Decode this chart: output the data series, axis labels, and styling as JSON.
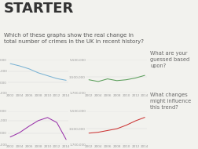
{
  "title": "STARTER",
  "subtitle": "Which of these graphs show the real change in\ntotal number of crimes in the UK in recent history?",
  "question1": "What are your\nguessed based\nupon?",
  "question2": "What changes\nmight influence\nthis trend?",
  "years": [
    2002,
    2004,
    2006,
    2008,
    2010,
    2012,
    2014
  ],
  "graph1": {
    "color": "#7ab3d4",
    "values": [
      6800000,
      6400000,
      5900000,
      5200000,
      4700000,
      4200000,
      3900000
    ],
    "ylim": [
      1700000,
      7500000
    ],
    "ytick_labels": [
      "1,700,000",
      "3,500,000",
      "5,500,000",
      "7,500,000"
    ],
    "ytick_vals": [
      1700000,
      3500000,
      5500000,
      7500000
    ]
  },
  "graph2": {
    "color": "#5a9e5a",
    "values": [
      3200000,
      3000000,
      3300000,
      3100000,
      3200000,
      3400000,
      3700000
    ],
    "ylim": [
      1700000,
      5500000
    ],
    "ytick_labels": [
      "1,700,000",
      "3,500,000",
      "5,500,000"
    ],
    "ytick_vals": [
      1700000,
      3500000,
      5500000
    ]
  },
  "graph3": {
    "color": "#9932aa",
    "values": [
      2900000,
      3600000,
      4600000,
      5500000,
      6000000,
      5200000,
      2500000
    ],
    "ylim": [
      1700000,
      7000000
    ],
    "ytick_labels": [
      "1,700,000",
      "3,500,000",
      "5,500,000",
      "7,000,000"
    ],
    "ytick_vals": [
      1700000,
      3500000,
      5500000,
      7000000
    ]
  },
  "graph4": {
    "color": "#cc3333",
    "values": [
      3000000,
      3100000,
      3300000,
      3500000,
      3900000,
      4400000,
      4800000
    ],
    "ylim": [
      1700000,
      5500000
    ],
    "ytick_labels": [
      "1,700,000",
      "3,500,000",
      "5,500,000"
    ],
    "ytick_vals": [
      1700000,
      3500000,
      5500000
    ]
  },
  "bg_color": "#f2f2ee",
  "title_fontsize": 13,
  "subtitle_fontsize": 5.0,
  "tick_fontsize": 3.0,
  "question_fontsize": 4.8
}
